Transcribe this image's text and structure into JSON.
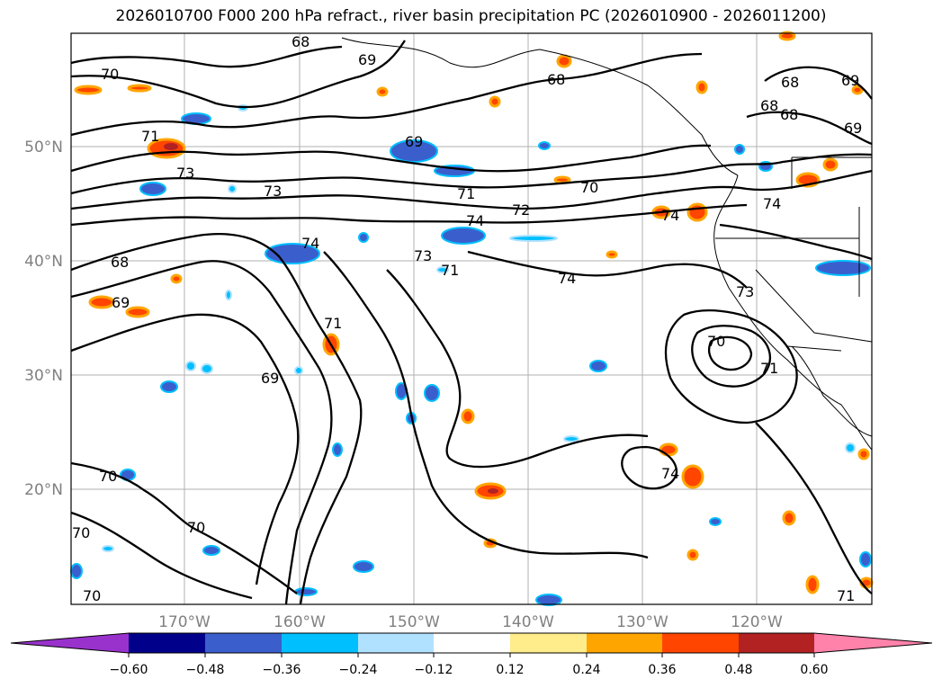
{
  "title": "2026010700 F000 200 hPa refract., river basin precipitation PC (2026010900 - 2026011200)",
  "lat_labels": [
    "50°N",
    "40°N",
    "30°N",
    "20°N"
  ],
  "lon_labels": [
    "170°W",
    "160°W",
    "150°W",
    "140°W",
    "130°W",
    "120°W"
  ],
  "colorbar": {
    "colors": [
      "#9932cc",
      "#00008b",
      "#3a5fcd",
      "#00bfff",
      "#b0e2ff",
      "#ffffff",
      "#ffec8b",
      "#ffa500",
      "#ff4500",
      "#b22222",
      "#ff82ab"
    ],
    "tick_labels": [
      "−0.60",
      "−0.48",
      "−0.36",
      "−0.24",
      "−0.12",
      "0.12",
      "0.24",
      "0.36",
      "0.48",
      "0.60"
    ]
  },
  "contour_labels": [
    "70",
    "71",
    "73",
    "68",
    "69",
    "70",
    "68",
    "71",
    "73",
    "74",
    "72",
    "71",
    "70",
    "74",
    "73",
    "74",
    "74",
    "70",
    "71",
    "74",
    "74",
    "73",
    "68",
    "69",
    "71",
    "69",
    "70",
    "70",
    "70",
    "71",
    "69",
    "68",
    "69",
    "68",
    "69",
    "68"
  ]
}
